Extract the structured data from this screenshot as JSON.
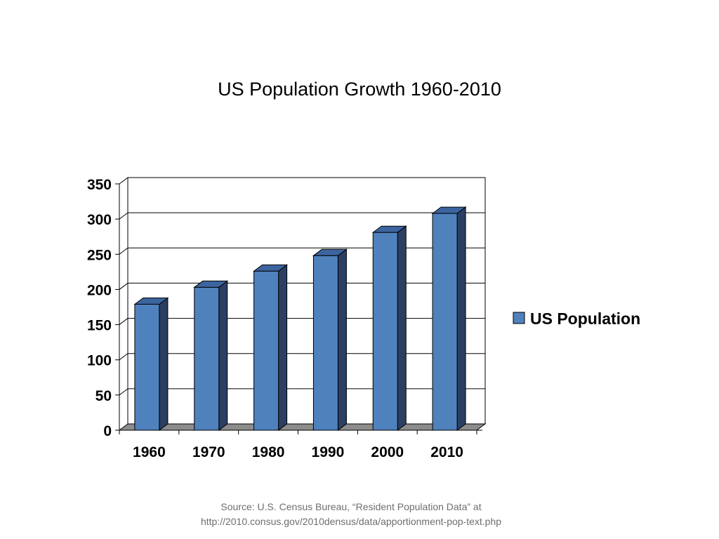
{
  "slide": {
    "title": "US Population Growth 1960-2010",
    "source_line1": "Source:  U.S. Census Bureau, “Resident Population Data” at",
    "source_line2": "http://2010.consus.gov/2010densus/data/apportionment-pop-text.php"
  },
  "chart_data": {
    "type": "bar",
    "title": "US Population Growth 1960-2010",
    "categories": [
      "1960",
      "1970",
      "1980",
      "1990",
      "2000",
      "2010"
    ],
    "series": [
      {
        "name": "US Population",
        "values": [
          179,
          203,
          226,
          248,
          281,
          308
        ],
        "color": "#4f81bd"
      }
    ],
    "xlabel": "",
    "ylabel": "",
    "ylim": [
      0,
      350
    ],
    "yticks": [
      "0",
      "50",
      "100",
      "150",
      "200",
      "250",
      "300",
      "350"
    ],
    "grid": true,
    "style": "3d-column",
    "legend": {
      "position": "right",
      "entries": [
        "US Population"
      ]
    },
    "colors": {
      "bar_front": "#4f81bd",
      "bar_side": "#2b3f63",
      "bar_top": "#3c65a0",
      "floor": "#8c8c8c"
    }
  }
}
